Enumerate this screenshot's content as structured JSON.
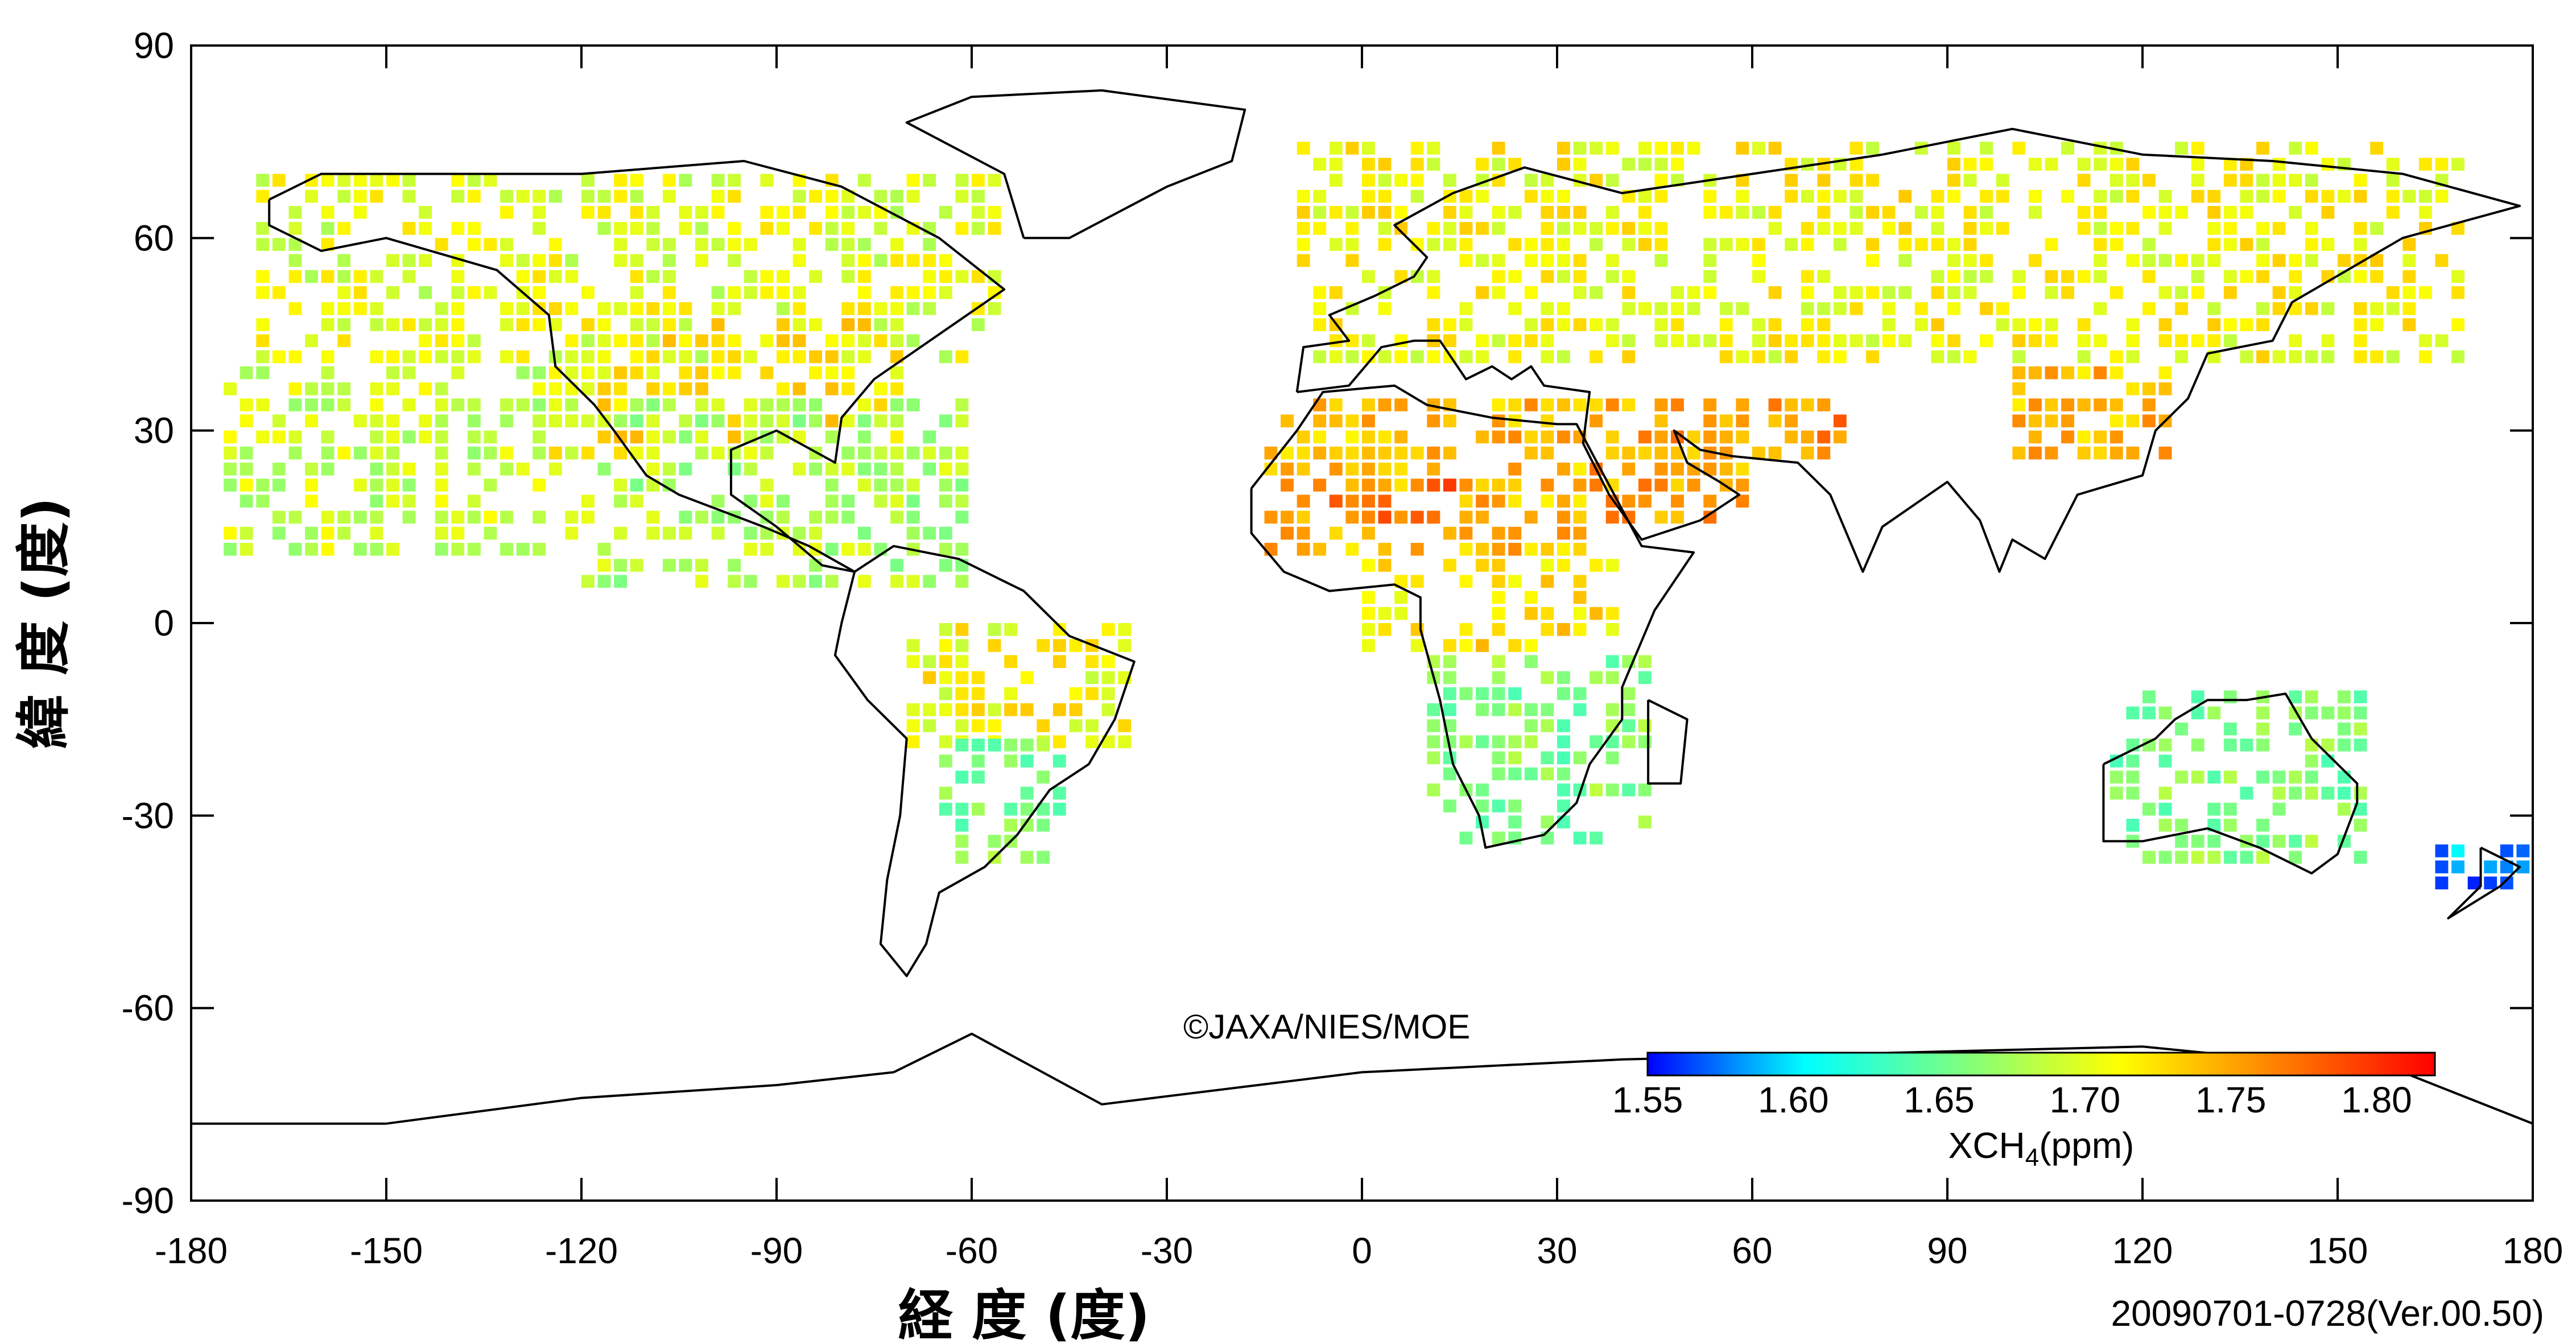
{
  "map": {
    "copyright": "©JAXA/NIES/MOE",
    "date_version": "20090701-0728(Ver.00.50)",
    "xaxis": {
      "title": "経 度 (度)",
      "ticks": [
        -180,
        -150,
        -120,
        -90,
        -60,
        -30,
        0,
        30,
        60,
        90,
        120,
        150,
        180
      ],
      "range": [
        -180,
        180
      ]
    },
    "yaxis": {
      "title": "緯 度 (度)",
      "ticks": [
        90,
        60,
        30,
        0,
        -30,
        -60,
        -90
      ],
      "range": [
        -90,
        90
      ]
    },
    "colorbar": {
      "title_main": "XCH",
      "title_sub": "4",
      "title_unit": "(ppm)",
      "min": 1.55,
      "max": 1.82,
      "ticks": [
        "1.55",
        "1.60",
        "1.65",
        "1.70",
        "1.75",
        "1.80"
      ],
      "tick_values": [
        1.55,
        1.6,
        1.65,
        1.7,
        1.75,
        1.8
      ],
      "colormap": [
        "#0000ff",
        "#00ffff",
        "#7fff7f",
        "#ffff00",
        "#ff8000",
        "#ff0000"
      ]
    }
  },
  "chart_data": {
    "type": "heatmap",
    "title": "",
    "xlabel": "経 度 (度)",
    "ylabel": "緯 度 (度)",
    "xlim": [
      -180,
      180
    ],
    "ylim": [
      -90,
      90
    ],
    "value_label": "XCH4(ppm)",
    "regions": [
      {
        "lon": [
          -170,
          -55
        ],
        "lat": [
          40,
          70
        ],
        "mean": 1.7
      },
      {
        "lon": [
          -125,
          -70
        ],
        "lat": [
          25,
          50
        ],
        "mean": 1.72
      },
      {
        "lon": [
          -175,
          -120
        ],
        "lat": [
          10,
          38
        ],
        "mean": 1.69
      },
      {
        "lon": [
          -120,
          -60
        ],
        "lat": [
          5,
          35
        ],
        "mean": 1.68
      },
      {
        "lon": [
          -70,
          -35
        ],
        "lat": [
          -20,
          0
        ],
        "mean": 1.71
      },
      {
        "lon": [
          -65,
          -45
        ],
        "lat": [
          -38,
          -20
        ],
        "mean": 1.66
      },
      {
        "lon": [
          -15,
          35
        ],
        "lat": [
          10,
          33
        ],
        "mean": 1.74
      },
      {
        "lon": [
          -5,
          15
        ],
        "lat": [
          15,
          22
        ],
        "mean": 1.78
      },
      {
        "lon": [
          35,
          60
        ],
        "lat": [
          15,
          35
        ],
        "mean": 1.75
      },
      {
        "lon": [
          55,
          75
        ],
        "lat": [
          25,
          35
        ],
        "mean": 1.76
      },
      {
        "lon": [
          10,
          45
        ],
        "lat": [
          -35,
          -5
        ],
        "mean": 1.66
      },
      {
        "lon": [
          0,
          40
        ],
        "lat": [
          -5,
          10
        ],
        "mean": 1.72
      },
      {
        "lon": [
          -10,
          170
        ],
        "lat": [
          40,
          75
        ],
        "mean": 1.71
      },
      {
        "lon": [
          100,
          125
        ],
        "lat": [
          25,
          40
        ],
        "mean": 1.74
      },
      {
        "lon": [
          115,
          155
        ],
        "lat": [
          -38,
          -12
        ],
        "mean": 1.66
      },
      {
        "lon": [
          165,
          178
        ],
        "lat": [
          -42,
          -36
        ],
        "mean": 1.58
      }
    ]
  }
}
